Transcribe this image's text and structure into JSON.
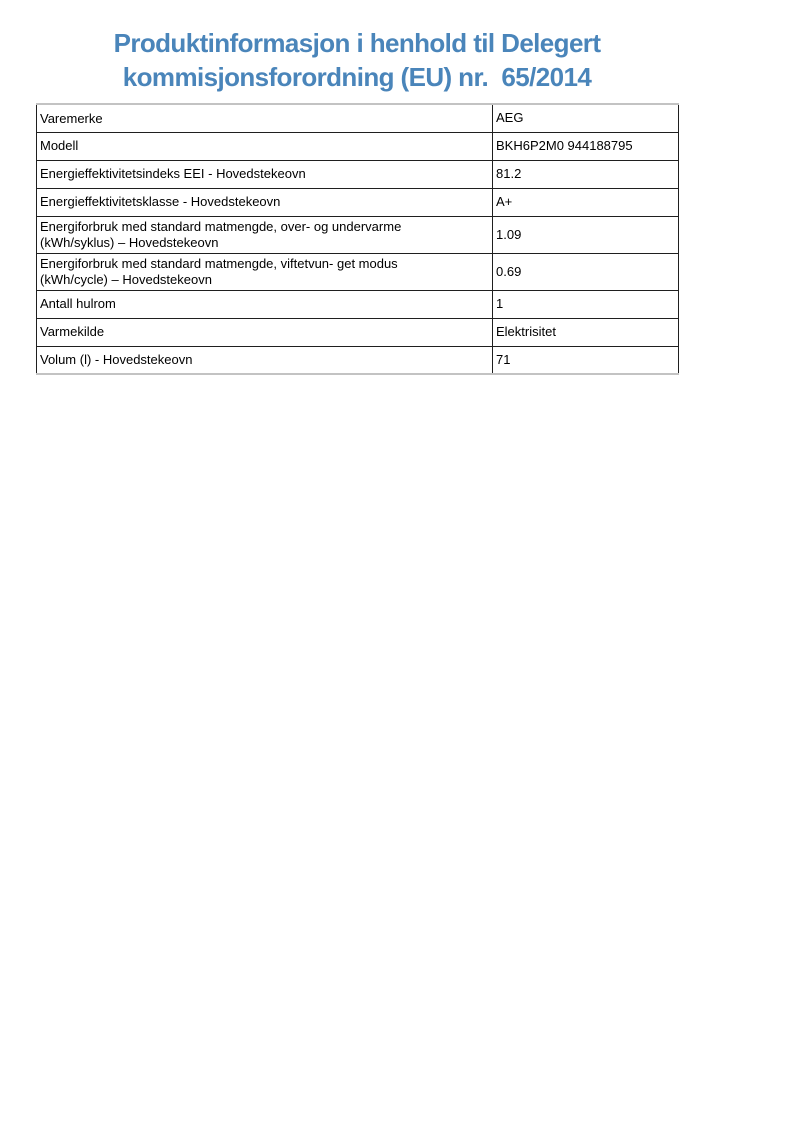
{
  "title": {
    "line1": "Produktinformasjon i henhold til Delegert",
    "line2": "kommisjonsforordning (EU) nr.  65/2014"
  },
  "colors": {
    "title_blue": "#4a85ba",
    "cell_border": "#1f1f1f",
    "outer_border": "#c3c3c3"
  },
  "table": {
    "rows": [
      {
        "label": "Varemerke",
        "value": "AEG"
      },
      {
        "label": "Modell",
        "value": "BKH6P2M0 944188795"
      },
      {
        "label": "Energieffektivitetsindeks EEI - Hovedstekeovn",
        "value": "81.2"
      },
      {
        "label": "Energieffektivitetsklasse - Hovedstekeovn",
        "value": "A+"
      },
      {
        "label": "Energiforbruk med standard matmengde, over- og undervarme (kWh/syklus) – Hovedstekeovn",
        "value": "1.09"
      },
      {
        "label": "Energiforbruk med standard matmengde, viftetvun- get modus (kWh/cycle) – Hovedstekeovn",
        "value": "0.69"
      },
      {
        "label": "Antall hulrom",
        "value": "1"
      },
      {
        "label": "Varmekilde",
        "value": "Elektrisitet"
      },
      {
        "label": "Volum (l) - Hovedstekeovn",
        "value": "71"
      }
    ]
  }
}
